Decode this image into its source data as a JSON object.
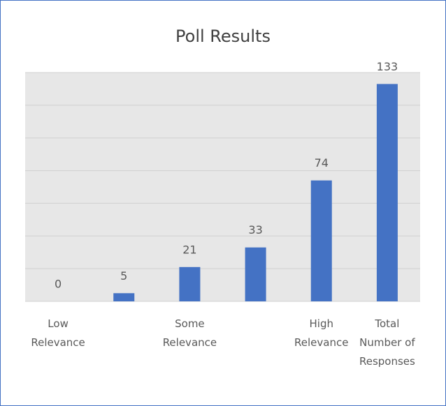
{
  "chart_data": {
    "type": "bar",
    "title": "Poll Results",
    "categories": [
      "Low Relevance",
      null,
      "Some Relevance",
      null,
      "High Relevance",
      "Total Number of Responses"
    ],
    "values": [
      0,
      5,
      21,
      33,
      74,
      133
    ],
    "color": "#4472c4",
    "ylim": [
      0,
      140
    ],
    "yticks": [
      0,
      20,
      40,
      60,
      80,
      100,
      120,
      140
    ],
    "grid": true,
    "show_ytick_labels": false,
    "data_labels": true
  }
}
